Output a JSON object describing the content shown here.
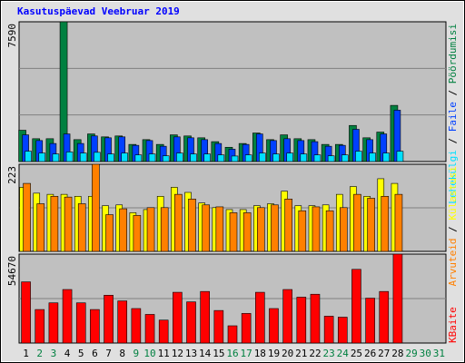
{
  "title": "Kasutuspäevad Veebruar 2019",
  "legend_separator": " / ",
  "chart_data": [
    {
      "type": "bar",
      "ylim": [
        0,
        7590
      ],
      "yticks": [
        7590
      ],
      "series": [
        {
          "name": "Pöördumisi",
          "color": "#008040",
          "values": [
            1700,
            1240,
            1240,
            7590,
            1190,
            1500,
            1340,
            1390,
            930,
            1190,
            930,
            1450,
            1390,
            1290,
            1080,
            775,
            980,
            1550,
            1190,
            1450,
            1240,
            1190,
            930,
            930,
            1960,
            1290,
            1600,
            3050,
            null,
            null,
            null
          ]
        },
        {
          "name": "Faile",
          "color": "#0040ff",
          "values": [
            1450,
            1140,
            980,
            1500,
            980,
            1390,
            1290,
            1340,
            880,
            1140,
            830,
            1340,
            1290,
            1190,
            980,
            670,
            930,
            1500,
            1140,
            1240,
            1140,
            1080,
            830,
            880,
            1750,
            1190,
            1500,
            2790,
            null,
            null,
            null
          ]
        },
        {
          "name": "Lehekülgi",
          "color": "#00e0ff",
          "values": [
            560,
            460,
            410,
            520,
            460,
            500,
            410,
            460,
            360,
            410,
            310,
            460,
            410,
            410,
            360,
            300,
            360,
            460,
            410,
            460,
            410,
            360,
            310,
            360,
            560,
            460,
            460,
            560,
            null,
            null,
            null
          ]
        }
      ]
    },
    {
      "type": "bar",
      "ylim": [
        0,
        223
      ],
      "yticks": [
        223
      ],
      "series": [
        {
          "name": "Külastusi",
          "color": "#ffff00",
          "values": [
            164,
            149,
            146,
            146,
            141,
            141,
            117,
            119,
            99,
            107,
            141,
            164,
            151,
            124,
            112,
            107,
            107,
            117,
            122,
            154,
            117,
            117,
            119,
            146,
            166,
            141,
            186,
            174,
            null,
            null,
            null
          ]
        },
        {
          "name": "Arvuteid",
          "color": "#ff8000",
          "values": [
            174,
            122,
            141,
            139,
            122,
            223,
            94,
            109,
            92,
            112,
            112,
            146,
            134,
            119,
            114,
            99,
            99,
            112,
            119,
            134,
            104,
            114,
            104,
            112,
            146,
            136,
            141,
            146,
            null,
            null,
            null
          ]
        }
      ]
    },
    {
      "type": "bar",
      "ylim": [
        0,
        54670
      ],
      "yticks": [
        54670
      ],
      "categories": [
        "1",
        "2",
        "3",
        "4",
        "5",
        "6",
        "7",
        "8",
        "9",
        "10",
        "11",
        "12",
        "13",
        "14",
        "15",
        "16",
        "17",
        "18",
        "19",
        "20",
        "21",
        "22",
        "23",
        "24",
        "25",
        "26",
        "27",
        "28",
        "29",
        "30",
        "31"
      ],
      "category_colors": [
        "#000000",
        "#008040",
        "#008040",
        "#000000",
        "#000000",
        "#000000",
        "#000000",
        "#000000",
        "#008040",
        "#008040",
        "#000000",
        "#000000",
        "#000000",
        "#000000",
        "#000000",
        "#008040",
        "#008040",
        "#000000",
        "#000000",
        "#000000",
        "#000000",
        "#000000",
        "#008040",
        "#008040",
        "#000000",
        "#000000",
        "#000000",
        "#000000",
        "#008040",
        "#008040",
        "#008040"
      ],
      "series": [
        {
          "name": "KBaite",
          "color": "#ff0000",
          "values": [
            37600,
            20600,
            24700,
            32900,
            24700,
            20600,
            29400,
            25900,
            21200,
            17600,
            14100,
            31200,
            25300,
            31700,
            20000,
            10600,
            18200,
            31200,
            21200,
            32900,
            28200,
            30000,
            16500,
            15900,
            45300,
            27600,
            31700,
            54670,
            null,
            null,
            null
          ]
        }
      ]
    }
  ]
}
